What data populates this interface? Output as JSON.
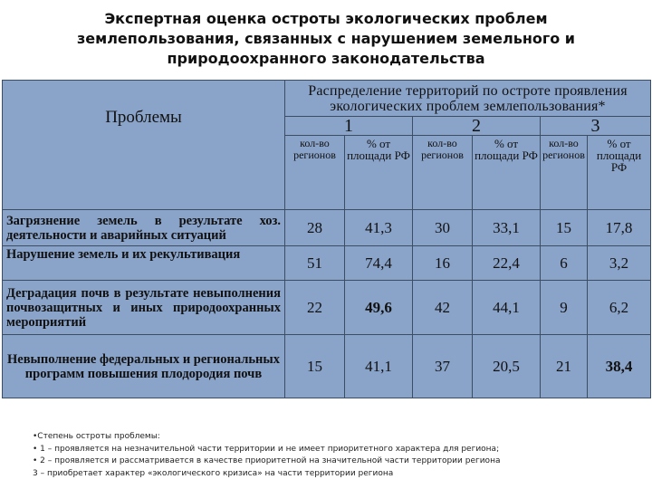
{
  "title": {
    "line1": "Экспертная оценка остроты экологических проблем",
    "line2": "землепользования, связанных с нарушением земельного и",
    "line3": "природоохранного законодательства"
  },
  "table": {
    "problems_header": "Проблемы",
    "distribution_header": "Распределение территорий по остроте проявления экологических проблем землепользования*",
    "groups": [
      "1",
      "2",
      "3"
    ],
    "subheaders": {
      "count_g1": "кол-во регионов",
      "pct_g1": "% от площади РФ",
      "count_g2": "кол-во регионов",
      "pct_g2": "% от площади РФ",
      "count_g3": "кол-во регионов",
      "pct_g3": "% от площади РФ"
    },
    "rows": [
      {
        "problem": "Загрязнение земель в результате хоз. деятельности и аварийных ситуаций",
        "values": [
          "28",
          "41,3",
          "30",
          "33,1",
          "15",
          "17,8"
        ]
      },
      {
        "problem": "Нарушение земель и их рекультивация",
        "values": [
          "51",
          "74,4",
          "16",
          "22,4",
          "6",
          "3,2"
        ]
      },
      {
        "problem": "Деградация почв в результате невыполнения почвозащитных и иных природоохранных мероприятий",
        "values": [
          "22",
          "49,6",
          "42",
          "44,1",
          "9",
          "6,2"
        ]
      },
      {
        "problem": "Невыполнение федеральных и региональных программ повышения плодородия почв",
        "values": [
          "15",
          "41,1",
          "37",
          "20,5",
          "21",
          "38,4"
        ]
      }
    ]
  },
  "notes": {
    "line1": "•Степень остроты проблемы:",
    "line2": "• 1 – проявляется на незначительной части территории и не имеет приоритетного характера для региона;",
    "line3": "• 2 – проявляется и рассматривается в качестве приоритетной на значительной части территории региона",
    "line4": "3 – приобретает характер «экологического кризиса» на части территории региона"
  }
}
